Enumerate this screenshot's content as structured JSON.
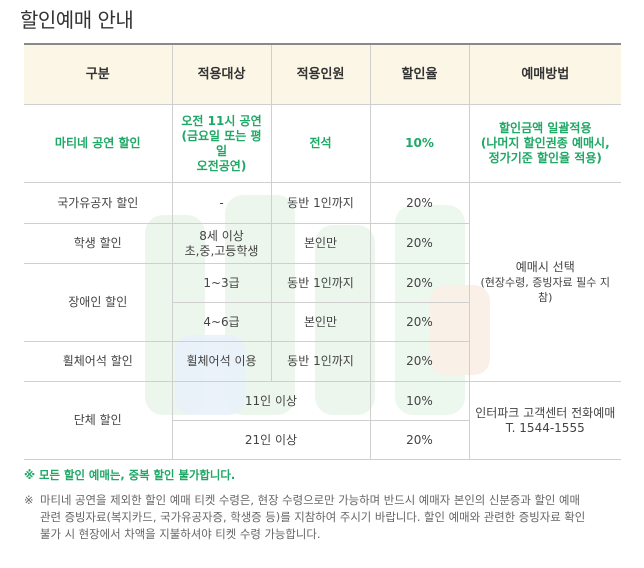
{
  "page_title": "할인예매 안내",
  "table": {
    "headers": [
      "구분",
      "적용대상",
      "적용인원",
      "할인율",
      "예매방법"
    ],
    "matinee": {
      "category": "마티네 공연 할인",
      "target": [
        "오전 11시 공연",
        "(금요일 또는 평일",
        "오전공연)"
      ],
      "people": "전석",
      "rate": "10%",
      "method": [
        "할인금액 일괄적용",
        "(나머지 할인권종 예매시,",
        "정가기준 할인율 적용)"
      ]
    },
    "national_merit": {
      "category": "국가유공자 할인",
      "target": "-",
      "people": "동반 1인까지",
      "rate": "20%"
    },
    "student": {
      "category": "학생 할인",
      "target": [
        "8세 이상",
        "초,중,고등학생"
      ],
      "people": "본인만",
      "rate": "20%"
    },
    "disabled": {
      "category": "장애인 할인",
      "rows": [
        {
          "target": "1~3급",
          "people": "동반 1인까지",
          "rate": "20%"
        },
        {
          "target": "4~6급",
          "people": "본인만",
          "rate": "20%"
        }
      ]
    },
    "wheelchair": {
      "category": "휠체어석 할인",
      "target": "휠체어석 이용",
      "people": "동반 1인까지",
      "rate": "20%"
    },
    "group": {
      "category": "단체 할인",
      "rows": [
        {
          "target": "11인 이상",
          "rate": "10%"
        },
        {
          "target": "21인 이상",
          "rate": "20%"
        }
      ]
    },
    "method_onsite": {
      "title": "예매시 선택",
      "note": "(현장수령, 증빙자료 필수 지참)"
    },
    "method_phone": [
      "인터파크 고객센터 전화예매",
      "T. 1544-1555"
    ]
  },
  "notes": {
    "green": "※ 모든 할인 예매는, 중복 할인 불가합니다.",
    "mark": "※",
    "gray_lines": [
      "마티네 공연을 제외한 할인 예매 티켓 수령은, 현장 수령으로만 가능하며 반드시 예매자 본인의 신분증과 할인 예매",
      "관련 증빙자료(복지카드, 국가유공자증, 학생증 등)를 지참하여 주시기 바랍니다. 할인 예매와 관련한 증빙자료 확인",
      "불가 시 현장에서 차액을 지불하셔야 티켓 수령 가능합니다."
    ]
  },
  "colors": {
    "accent_green": "#1fa866",
    "header_bg": "#fbf6e6"
  }
}
